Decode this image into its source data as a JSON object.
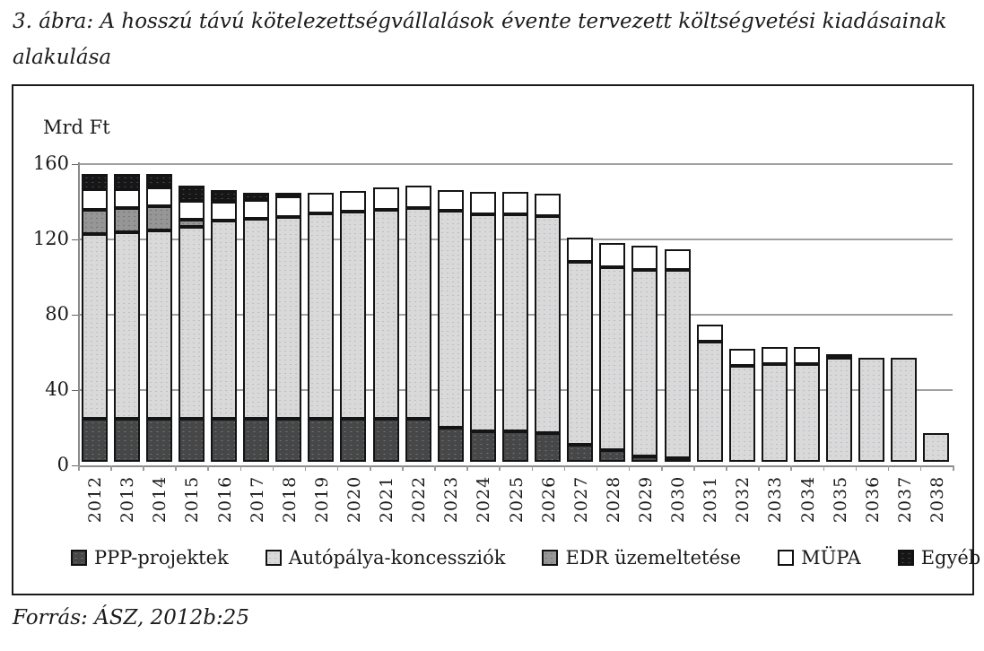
{
  "document": {
    "caption_line1": "3. ábra: A hosszú távú kötelezettségvállalások évente tervezett költségvetési kiadásainak",
    "caption_line2": "alakulása",
    "source": "Forrás: ÁSZ, 2012b:25"
  },
  "chart_data": {
    "type": "bar",
    "stacked": true,
    "unit_label": "Mrd Ft",
    "ylabel": "Mrd Ft",
    "xlabel": "",
    "ylim": [
      0,
      160
    ],
    "y_ticks": [
      0,
      40,
      80,
      120,
      160
    ],
    "grid": true,
    "legend_position": "bottom",
    "categories": [
      "2012",
      "2013",
      "2014",
      "2015",
      "2016",
      "2017",
      "2018",
      "2019",
      "2020",
      "2021",
      "2022",
      "2023",
      "2024",
      "2025",
      "2026",
      "2027",
      "2028",
      "2029",
      "2030",
      "2031",
      "2032",
      "2033",
      "2034",
      "2035",
      "2036",
      "2037",
      "2038"
    ],
    "series": [
      {
        "name": "PPP-projektek",
        "color": "#474747",
        "values": [
          23,
          23,
          23,
          23,
          23,
          23,
          23,
          23,
          23,
          23,
          23,
          18,
          16,
          16,
          15,
          9,
          6,
          3,
          1,
          0,
          0,
          0,
          0,
          0,
          0,
          0,
          0
        ]
      },
      {
        "name": "Autópálya-koncessziók",
        "color": "#d9d9d9",
        "values": [
          98,
          99,
          100,
          102,
          105,
          106,
          107,
          109,
          110,
          111,
          112,
          115,
          115,
          115,
          115,
          97,
          97,
          99,
          100,
          64,
          51,
          52,
          52,
          55,
          55,
          55,
          15
        ]
      },
      {
        "name": "EDR üzemeltetése",
        "color": "#969696",
        "values": [
          13,
          13,
          13,
          4,
          0,
          0,
          0,
          0,
          0,
          0,
          0,
          0,
          0,
          0,
          0,
          0,
          0,
          0,
          0,
          0,
          0,
          0,
          0,
          0,
          0,
          0,
          0
        ]
      },
      {
        "name": "MÜPA",
        "color": "#ffffff",
        "values": [
          11,
          10,
          10,
          10,
          10,
          10,
          11,
          11,
          11,
          12,
          12,
          11,
          12,
          12,
          12,
          13,
          13,
          13,
          11,
          9,
          9,
          9,
          9,
          2,
          0,
          0,
          0
        ]
      },
      {
        "name": "Egyéb",
        "color": "#161616",
        "values": [
          8,
          8,
          7,
          8,
          6,
          4,
          1,
          0,
          0,
          0,
          0,
          0,
          0,
          0,
          0,
          0,
          0,
          0,
          0,
          0,
          0,
          0,
          0,
          0,
          0,
          0,
          0
        ]
      }
    ]
  }
}
